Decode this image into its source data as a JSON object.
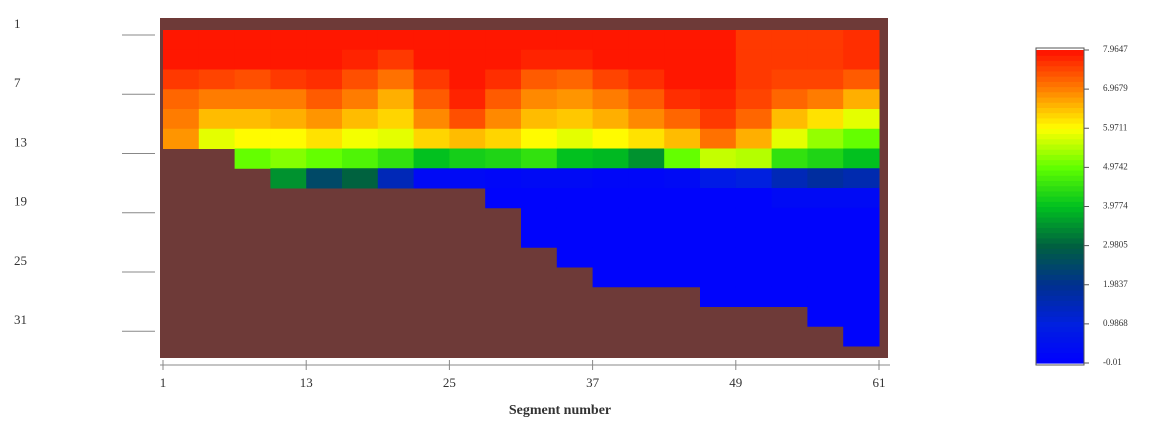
{
  "chart_data": {
    "type": "heatmap",
    "xlabel": "Segment number",
    "xlim": [
      1,
      61
    ],
    "xticks": [
      1,
      13,
      25,
      37,
      49,
      61
    ],
    "ylim": [
      0.5,
      32.5
    ],
    "yticks": [
      1,
      7,
      13,
      19,
      25,
      31
    ],
    "y_reversed": true,
    "bed_color": "#6e3a38",
    "colormap": [
      "#0000ff",
      "#0020e0",
      "#003090",
      "#006040",
      "#00c020",
      "#60ff00",
      "#ffff00",
      "#ff8000",
      "#ff1000"
    ],
    "clim": [
      -0.01,
      7.9647
    ],
    "cticks": [
      7.9647,
      6.9679,
      5.9711,
      4.9742,
      3.9774,
      2.9805,
      1.9837,
      0.9868,
      -0.01
    ],
    "x": [
      2.5,
      5.5,
      8.5,
      11.5,
      14.5,
      17.5,
      20.5,
      23.5,
      26.5,
      29.5,
      32.5,
      35.5,
      38.5,
      41.5,
      44.5,
      47.5,
      50.5,
      53.5,
      56.5,
      59.5
    ],
    "y": [
      1.5,
      3.5,
      5.5,
      7.5,
      9.5,
      11.5,
      13.5,
      15.5,
      17.5,
      19.5,
      21.5,
      23.5,
      25.5,
      27.5,
      29.5,
      31.5
    ],
    "values": [
      [
        7.9,
        7.9,
        7.6,
        7.2,
        7.0,
        6.8,
        null,
        null,
        null,
        null,
        null,
        null,
        null,
        null,
        null,
        null
      ],
      [
        7.9,
        7.9,
        7.5,
        7.0,
        6.5,
        5.8,
        null,
        null,
        null,
        null,
        null,
        null,
        null,
        null,
        null,
        null
      ],
      [
        7.9,
        7.9,
        7.4,
        7.0,
        6.5,
        6.0,
        5.0,
        null,
        null,
        null,
        null,
        null,
        null,
        null,
        null,
        null
      ],
      [
        7.9,
        7.9,
        7.6,
        7.0,
        6.6,
        6.0,
        5.2,
        3.5,
        null,
        null,
        null,
        null,
        null,
        null,
        null,
        null
      ],
      [
        7.9,
        7.9,
        7.7,
        7.3,
        6.8,
        6.2,
        5.0,
        2.5,
        null,
        null,
        null,
        null,
        null,
        null,
        null,
        null
      ],
      [
        7.9,
        7.8,
        7.4,
        7.0,
        6.5,
        5.9,
        4.8,
        3.0,
        null,
        null,
        null,
        null,
        null,
        null,
        null,
        null
      ],
      [
        7.9,
        7.6,
        7.1,
        6.6,
        6.3,
        5.8,
        4.5,
        1.5,
        null,
        null,
        null,
        null,
        null,
        null,
        null,
        null
      ],
      [
        7.9,
        7.9,
        7.6,
        7.3,
        6.9,
        6.3,
        4.0,
        0.3,
        null,
        null,
        null,
        null,
        null,
        null,
        null,
        null
      ],
      [
        7.9,
        7.9,
        7.9,
        7.8,
        7.4,
        6.5,
        4.2,
        0.3,
        null,
        null,
        null,
        null,
        null,
        null,
        null,
        null
      ],
      [
        7.9,
        7.9,
        7.7,
        7.3,
        6.9,
        6.3,
        4.3,
        0.2,
        0.1,
        null,
        null,
        null,
        null,
        null,
        null,
        null
      ],
      [
        7.9,
        7.8,
        7.3,
        6.9,
        6.5,
        6.0,
        4.5,
        0.3,
        0.1,
        0.1,
        0.1,
        null,
        null,
        null,
        null,
        null
      ],
      [
        7.9,
        7.8,
        7.2,
        6.8,
        6.4,
        5.8,
        4.0,
        0.3,
        0.1,
        0.1,
        0.1,
        0.1,
        null,
        null,
        null,
        null
      ],
      [
        7.9,
        7.9,
        7.5,
        7.0,
        6.6,
        6.0,
        3.9,
        0.2,
        0.1,
        0.1,
        0.1,
        0.1,
        0.1,
        null,
        null,
        null
      ],
      [
        7.9,
        7.9,
        7.7,
        7.3,
        6.9,
        6.2,
        3.5,
        0.2,
        0.1,
        0.1,
        0.1,
        0.1,
        0.1,
        null,
        null,
        null
      ],
      [
        7.9,
        7.9,
        7.9,
        7.7,
        7.2,
        6.5,
        5.0,
        0.3,
        0.1,
        0.1,
        0.1,
        0.1,
        0.1,
        null,
        null,
        null
      ],
      [
        7.9,
        7.9,
        7.9,
        7.8,
        7.6,
        7.1,
        5.6,
        0.8,
        0.1,
        0.1,
        0.1,
        0.1,
        0.1,
        0.1,
        null,
        null
      ],
      [
        7.6,
        7.6,
        7.6,
        7.5,
        7.2,
        6.6,
        5.5,
        1.0,
        0.1,
        0.1,
        0.1,
        0.1,
        0.1,
        0.1,
        null,
        null
      ],
      [
        7.6,
        7.6,
        7.5,
        7.2,
        6.5,
        5.8,
        4.5,
        1.5,
        0.3,
        0.1,
        0.1,
        0.1,
        0.1,
        0.1,
        null,
        null
      ],
      [
        7.6,
        7.6,
        7.5,
        7.0,
        6.2,
        5.3,
        4.3,
        1.8,
        0.3,
        0.1,
        0.1,
        0.1,
        0.1,
        0.1,
        0.1,
        null
      ],
      [
        7.7,
        7.7,
        7.3,
        6.6,
        5.8,
        5.0,
        4.0,
        1.6,
        0.3,
        0.1,
        0.1,
        0.1,
        0.1,
        0.1,
        0.1,
        0.1
      ]
    ]
  }
}
